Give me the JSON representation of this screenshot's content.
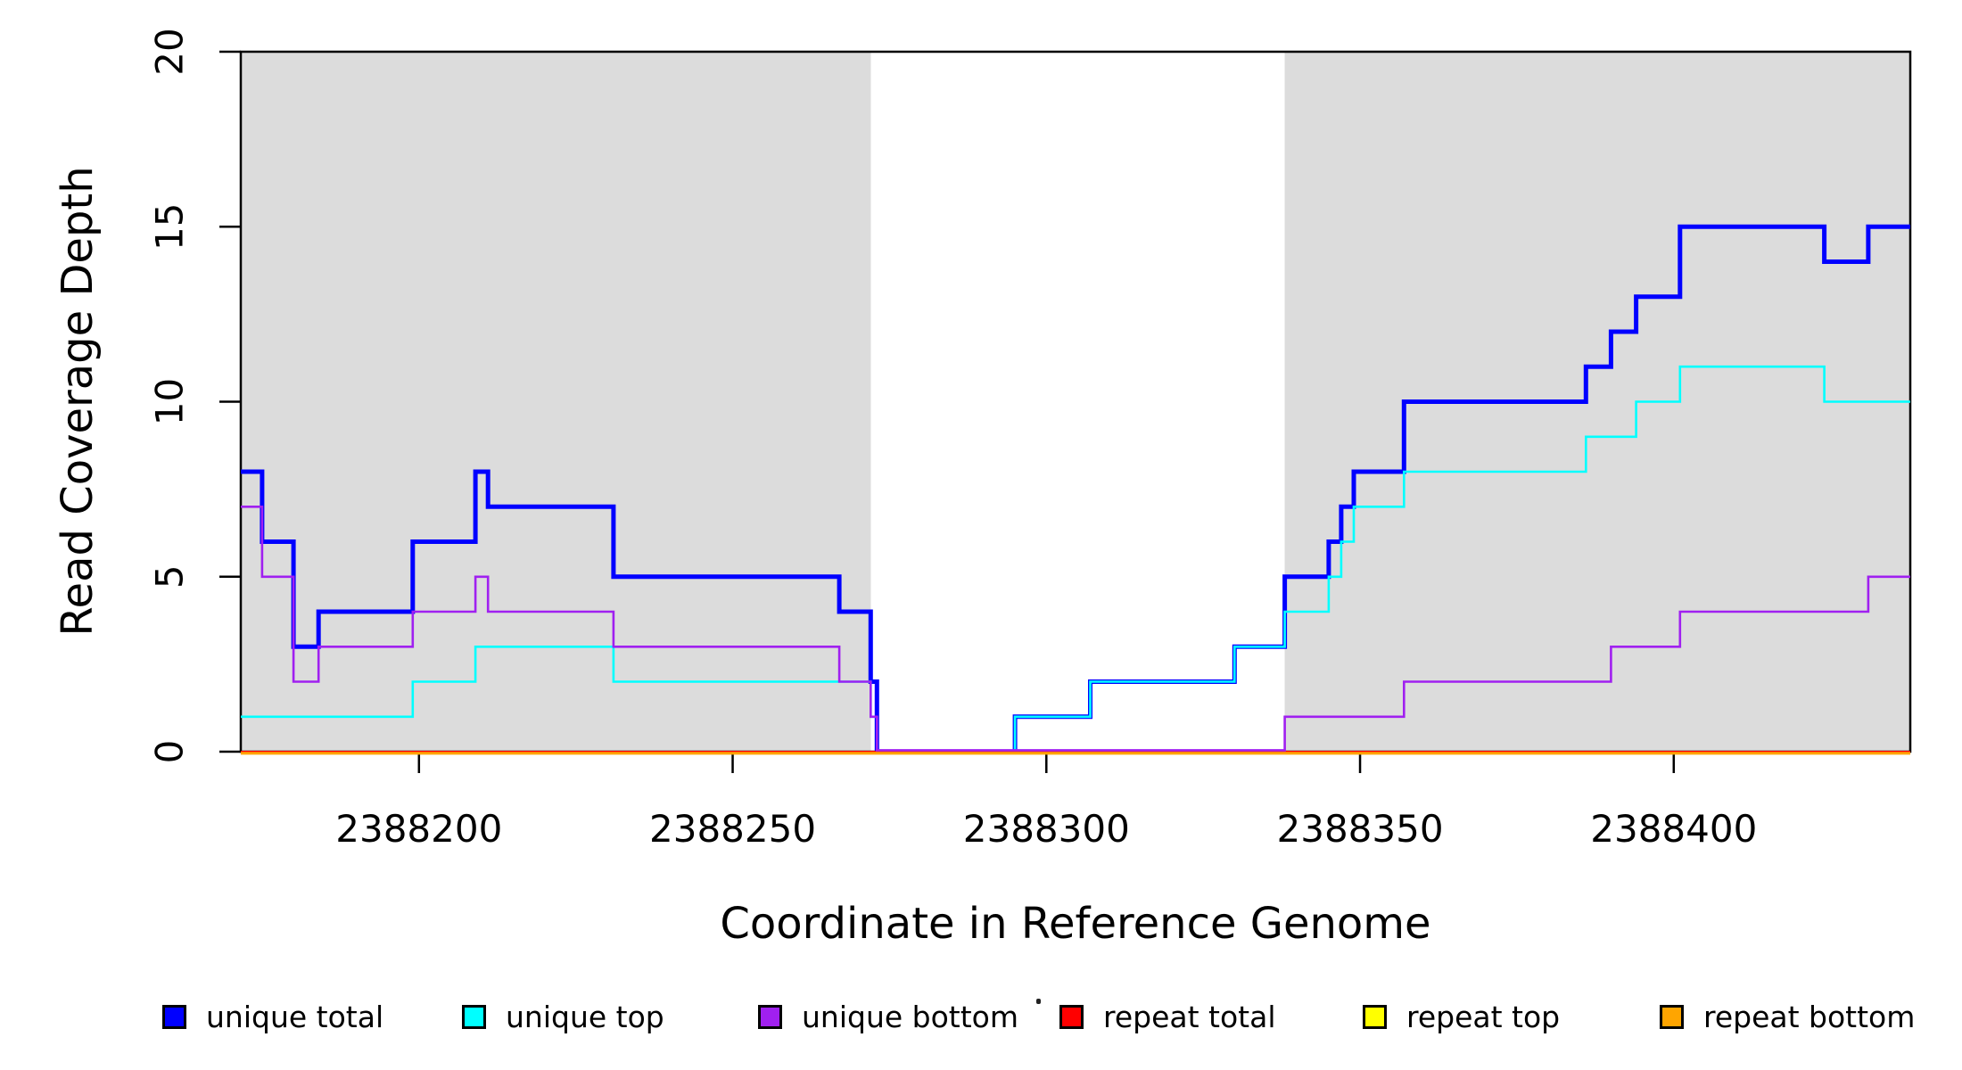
{
  "axes": {
    "x_label": "Coordinate in Reference Genome",
    "y_label": "Read Coverage Depth"
  },
  "chart_data": {
    "type": "line",
    "subtype": "step",
    "title": "",
    "xlabel": "Coordinate in Reference Genome",
    "ylabel": "Read Coverage Depth",
    "xlim": [
      2388171.6,
      2388437.7
    ],
    "ylim": [
      0,
      20
    ],
    "x_ticks": [
      2388200,
      2388250,
      2388300,
      2388350,
      2388400
    ],
    "y_ticks": [
      0,
      5,
      10,
      15,
      20
    ],
    "grid": false,
    "legend_position": "bottom",
    "background_color": "#ffffff",
    "shade_color": "#dcdcdc",
    "frame_color": "#000000",
    "shaded_x_regions": [
      [
        2388171.6,
        2388272
      ],
      [
        2388338,
        2388437.7
      ]
    ],
    "series": [
      {
        "name": "unique total",
        "color": "#0000ff",
        "line_width": 5,
        "draw_order": 1,
        "zero_y_nudge": 0,
        "steps": [
          [
            2388171.6,
            8
          ],
          [
            2388175,
            6
          ],
          [
            2388180,
            3
          ],
          [
            2388184,
            4
          ],
          [
            2388199,
            6
          ],
          [
            2388209,
            8
          ],
          [
            2388211,
            7
          ],
          [
            2388231,
            5
          ],
          [
            2388267,
            4
          ],
          [
            2388272,
            2
          ],
          [
            2388273,
            0
          ],
          [
            2388295,
            1
          ],
          [
            2388307,
            2
          ],
          [
            2388330,
            3
          ],
          [
            2388338,
            5
          ],
          [
            2388345,
            6
          ],
          [
            2388347,
            7
          ],
          [
            2388349,
            8
          ],
          [
            2388357,
            10
          ],
          [
            2388386,
            11
          ],
          [
            2388390,
            12
          ],
          [
            2388394,
            13
          ],
          [
            2388401,
            15
          ],
          [
            2388424,
            14
          ],
          [
            2388431,
            15
          ]
        ]
      },
      {
        "name": "unique top",
        "color": "#00ffff",
        "line_width": 2.6,
        "draw_order": 2,
        "zero_y_nudge": 0,
        "steps": [
          [
            2388171.6,
            1
          ],
          [
            2388199,
            2
          ],
          [
            2388209,
            3
          ],
          [
            2388231,
            2
          ],
          [
            2388272,
            1
          ],
          [
            2388273,
            0
          ],
          [
            2388295,
            1
          ],
          [
            2388307,
            2
          ],
          [
            2388330,
            3
          ],
          [
            2388338,
            4
          ],
          [
            2388345,
            5
          ],
          [
            2388347,
            6
          ],
          [
            2388349,
            7
          ],
          [
            2388357,
            8
          ],
          [
            2388386,
            9
          ],
          [
            2388394,
            10
          ],
          [
            2388401,
            11
          ],
          [
            2388424,
            10
          ]
        ]
      },
      {
        "name": "unique bottom",
        "color": "#a020f0",
        "line_width": 2.6,
        "draw_order": 5,
        "zero_y_nudge": -1.6,
        "steps": [
          [
            2388171.6,
            7
          ],
          [
            2388175,
            5
          ],
          [
            2388180,
            2
          ],
          [
            2388184,
            3
          ],
          [
            2388199,
            4
          ],
          [
            2388209,
            5
          ],
          [
            2388211,
            4
          ],
          [
            2388231,
            3
          ],
          [
            2388267,
            2
          ],
          [
            2388272,
            1
          ],
          [
            2388273,
            0
          ],
          [
            2388338,
            1
          ],
          [
            2388357,
            2
          ],
          [
            2388390,
            3
          ],
          [
            2388401,
            4
          ],
          [
            2388431,
            5
          ]
        ]
      },
      {
        "name": "repeat total",
        "color": "#ff0000",
        "line_width": 2.6,
        "draw_order": 4,
        "zero_y_nudge": 0.3,
        "steps": [
          [
            2388171.6,
            0
          ]
        ]
      },
      {
        "name": "repeat top",
        "color": "#ffff00",
        "line_width": 2.6,
        "draw_order": 3,
        "zero_y_nudge": 0.3,
        "steps": [
          [
            2388171.6,
            0
          ]
        ]
      },
      {
        "name": "repeat bottom",
        "color": "#ffa500",
        "line_width": 3.2,
        "draw_order": 6,
        "zero_y_nudge": 1.8,
        "steps": [
          [
            2388171.6,
            0
          ]
        ]
      }
    ]
  },
  "legend": {
    "items": [
      {
        "label": "unique total",
        "color": "#0000ff"
      },
      {
        "label": "unique top",
        "color": "#00ffff"
      },
      {
        "label": "unique bottom",
        "color": "#a020f0"
      },
      {
        "label": "repeat total",
        "color": "#ff0000"
      },
      {
        "label": "repeat top",
        "color": "#ffff00"
      },
      {
        "label": "repeat bottom",
        "color": "#ffa500"
      }
    ]
  }
}
